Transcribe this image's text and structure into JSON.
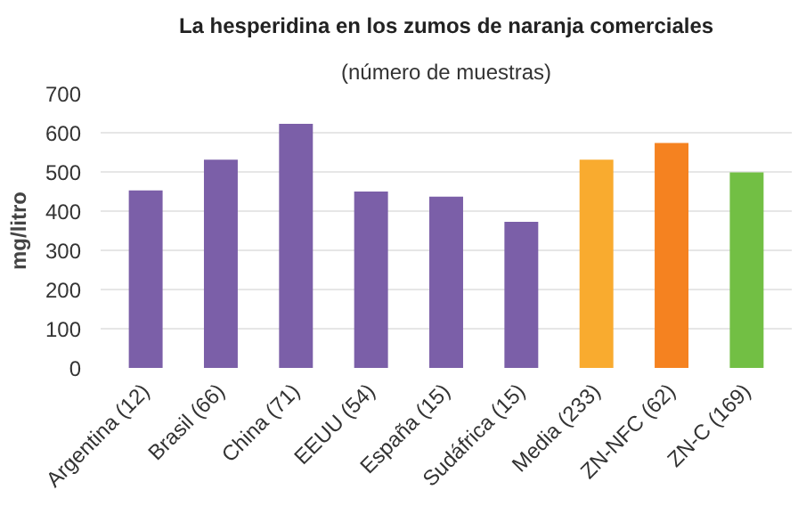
{
  "chart_data": {
    "type": "bar",
    "title": "La hesperidina en los zumos de naranja comerciales",
    "subtitle": "(número de muestras)",
    "ylabel": "mg/litro",
    "categories": [
      "Argentina (12)",
      "Brasil (66)",
      "China (71)",
      "EEUU (54)",
      "España (15)",
      "Sudáfrica (15)",
      "Media (233)",
      "ZN-NFC (62)",
      "ZN-C (169)"
    ],
    "values": [
      453,
      531,
      623,
      450,
      437,
      373,
      531,
      574,
      499
    ],
    "colors": [
      "#7b5fa8",
      "#7b5fa8",
      "#7b5fa8",
      "#7b5fa8",
      "#7b5fa8",
      "#7b5fa8",
      "#f9ab2f",
      "#f58220",
      "#72bf44"
    ],
    "ylim": [
      0,
      700
    ],
    "yticks": [
      0,
      100,
      200,
      300,
      400,
      500,
      600,
      700
    ],
    "grid": "y"
  }
}
